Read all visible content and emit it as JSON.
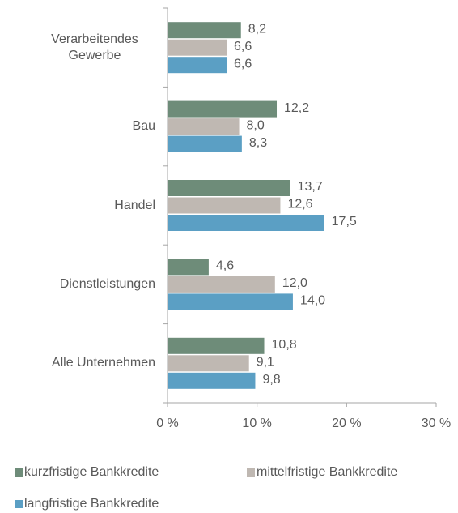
{
  "chart_data": {
    "type": "barh",
    "categories": [
      "Verarbeitendes Gewerbe",
      "Bau",
      "Handel",
      "Dienstleistungen",
      "Alle Unternehmen"
    ],
    "series": [
      {
        "name": "kurzfristige Bankkredite",
        "color": "#6e8c79",
        "values": [
          8.2,
          12.2,
          13.7,
          4.6,
          10.8
        ],
        "value_labels": [
          "8,2",
          "12,2",
          "13,7",
          "4,6",
          "10,8"
        ]
      },
      {
        "name": "mittelfristige Bankkredite",
        "color": "#bfb8b2",
        "values": [
          6.6,
          8.0,
          12.6,
          12.0,
          9.1
        ],
        "value_labels": [
          "6,6",
          "8,0",
          "12,6",
          "12,0",
          "9,1"
        ]
      },
      {
        "name": "langfristige Bankkredite",
        "color": "#5b9fc4",
        "values": [
          6.6,
          8.3,
          17.5,
          14.0,
          9.8
        ],
        "value_labels": [
          "6,6",
          "8,3",
          "17,5",
          "14,0",
          "9,8"
        ]
      }
    ],
    "xlim": [
      0,
      30
    ],
    "xticks": [
      {
        "value": 0,
        "label": "0 %"
      },
      {
        "value": 10,
        "label": "10 %"
      },
      {
        "value": 20,
        "label": "20 %"
      },
      {
        "value": 30,
        "label": "30 %"
      }
    ],
    "grid": false
  }
}
